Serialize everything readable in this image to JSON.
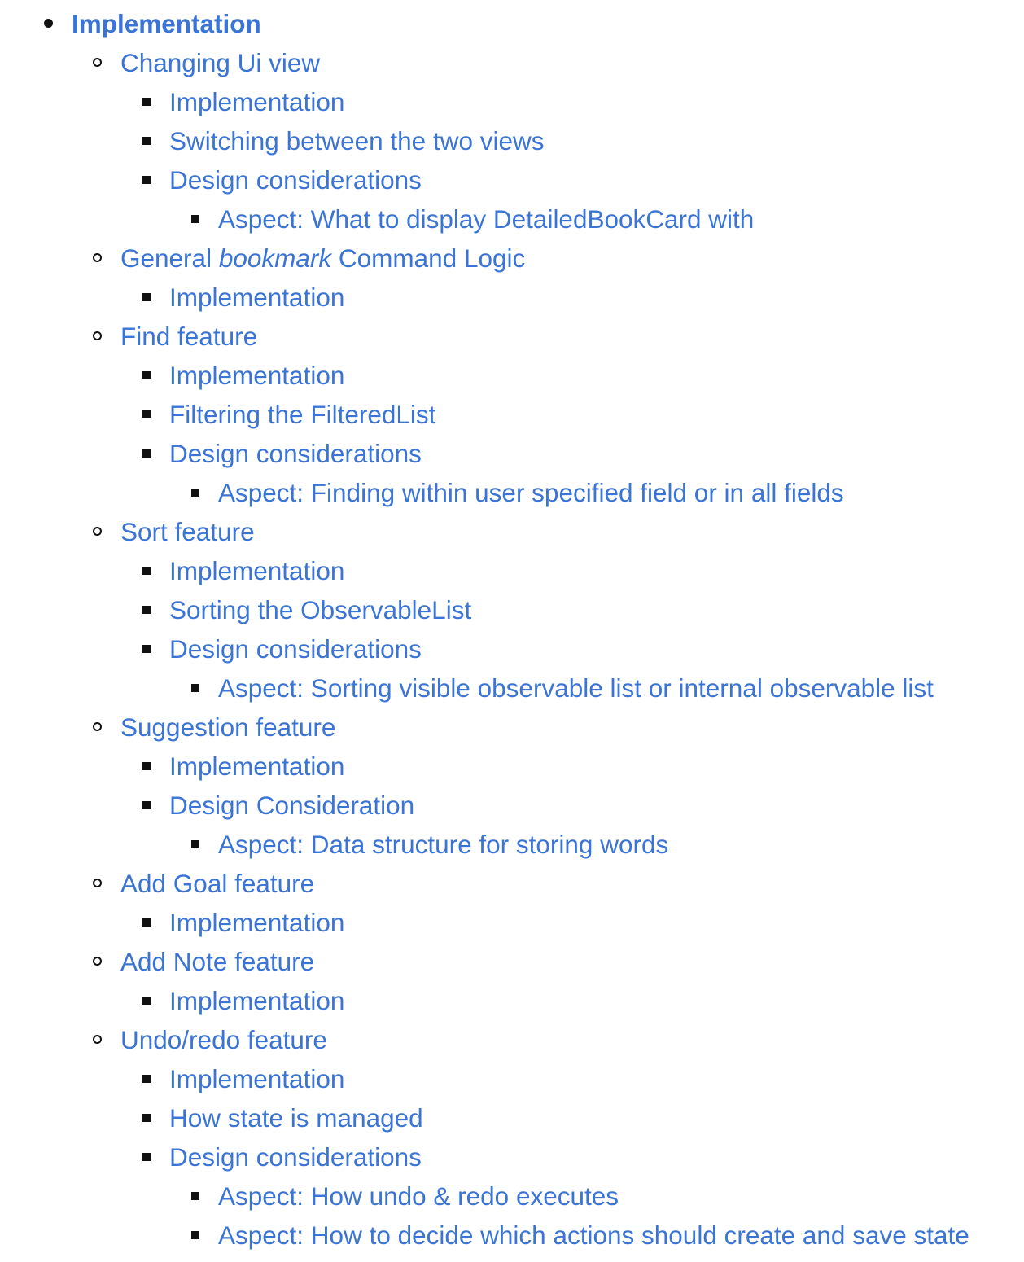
{
  "colors": {
    "link": "#3a74d6",
    "bullet": "#111111"
  },
  "toc": [
    {
      "level": 1,
      "marker": "disc",
      "text": "Implementation"
    },
    {
      "level": 2,
      "marker": "circle",
      "text": "Changing Ui view"
    },
    {
      "level": 3,
      "marker": "square",
      "text": "Implementation"
    },
    {
      "level": 3,
      "marker": "square",
      "text": "Switching between the two views"
    },
    {
      "level": 3,
      "marker": "square",
      "text": "Design considerations"
    },
    {
      "level": 4,
      "marker": "square",
      "text": "Aspect: What to display DetailedBookCard with"
    },
    {
      "level": 2,
      "marker": "circle",
      "text": "General bookmark Command Logic",
      "parts": [
        "General ",
        "bookmark",
        " Command Logic"
      ]
    },
    {
      "level": 3,
      "marker": "square",
      "text": "Implementation"
    },
    {
      "level": 2,
      "marker": "circle",
      "text": "Find feature"
    },
    {
      "level": 3,
      "marker": "square",
      "text": "Implementation"
    },
    {
      "level": 3,
      "marker": "square",
      "text": "Filtering the FilteredList"
    },
    {
      "level": 3,
      "marker": "square",
      "text": "Design considerations"
    },
    {
      "level": 4,
      "marker": "square",
      "text": "Aspect: Finding within user specified field or in all fields"
    },
    {
      "level": 2,
      "marker": "circle",
      "text": "Sort feature"
    },
    {
      "level": 3,
      "marker": "square",
      "text": "Implementation"
    },
    {
      "level": 3,
      "marker": "square",
      "text": "Sorting the ObservableList"
    },
    {
      "level": 3,
      "marker": "square",
      "text": "Design considerations"
    },
    {
      "level": 4,
      "marker": "square",
      "text": "Aspect: Sorting visible observable list or internal observable list"
    },
    {
      "level": 2,
      "marker": "circle",
      "text": "Suggestion feature"
    },
    {
      "level": 3,
      "marker": "square",
      "text": "Implementation"
    },
    {
      "level": 3,
      "marker": "square",
      "text": "Design Consideration"
    },
    {
      "level": 4,
      "marker": "square",
      "text": "Aspect: Data structure for storing words"
    },
    {
      "level": 2,
      "marker": "circle",
      "text": "Add Goal feature"
    },
    {
      "level": 3,
      "marker": "square",
      "text": "Implementation"
    },
    {
      "level": 2,
      "marker": "circle",
      "text": "Add Note feature"
    },
    {
      "level": 3,
      "marker": "square",
      "text": "Implementation"
    },
    {
      "level": 2,
      "marker": "circle",
      "text": "Undo/redo feature"
    },
    {
      "level": 3,
      "marker": "square",
      "text": "Implementation"
    },
    {
      "level": 3,
      "marker": "square",
      "text": "How state is managed"
    },
    {
      "level": 3,
      "marker": "square",
      "text": "Design considerations"
    },
    {
      "level": 4,
      "marker": "square",
      "text": "Aspect: How undo & redo executes"
    },
    {
      "level": 4,
      "marker": "square",
      "text": "Aspect: How to decide which actions should create and save state"
    }
  ]
}
